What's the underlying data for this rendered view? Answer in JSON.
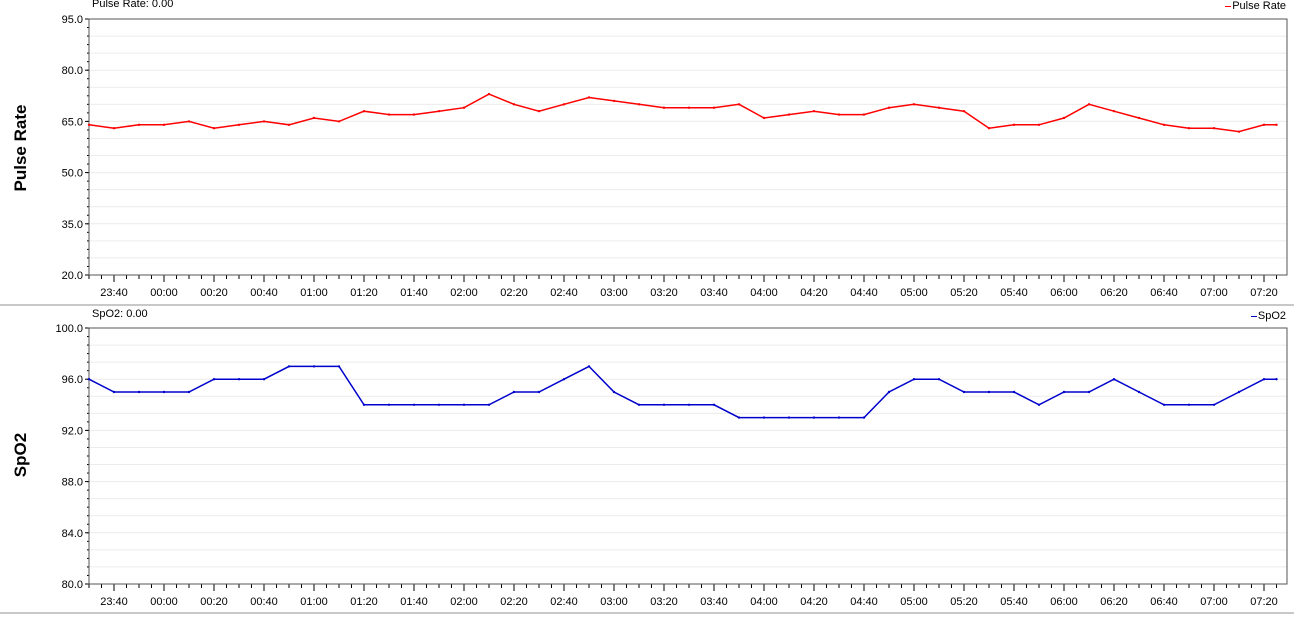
{
  "chart_data": [
    {
      "type": "line",
      "readout": "Pulse Rate: 0.00",
      "ylabel": "Pulse Rate",
      "legend": "Pulse Rate",
      "color": "#ff0000",
      "ylim": [
        20,
        95
      ],
      "yticks": [
        "20.0",
        "35.0",
        "50.0",
        "65.0",
        "80.0",
        "95.0"
      ],
      "xticks": [
        "23:40",
        "00:00",
        "00:20",
        "00:40",
        "01:00",
        "01:20",
        "01:40",
        "02:00",
        "02:20",
        "02:40",
        "03:00",
        "03:20",
        "03:40",
        "04:00",
        "04:20",
        "04:40",
        "05:00",
        "05:20",
        "05:40",
        "06:00",
        "06:20",
        "06:40",
        "07:00",
        "07:20"
      ],
      "grid": true,
      "legend_position": "top-right",
      "series": [
        {
          "name": "Pulse Rate",
          "x": [
            "23:30",
            "23:40",
            "23:50",
            "00:00",
            "00:10",
            "00:20",
            "00:30",
            "00:40",
            "00:50",
            "01:00",
            "01:10",
            "01:20",
            "01:30",
            "01:40",
            "01:50",
            "02:00",
            "02:10",
            "02:20",
            "02:30",
            "02:40",
            "02:50",
            "03:00",
            "03:10",
            "03:20",
            "03:30",
            "03:40",
            "03:50",
            "04:00",
            "04:10",
            "04:20",
            "04:30",
            "04:40",
            "04:50",
            "05:00",
            "05:10",
            "05:20",
            "05:30",
            "05:40",
            "05:50",
            "06:00",
            "06:10",
            "06:20",
            "06:30",
            "06:40",
            "06:50",
            "07:00",
            "07:10",
            "07:20",
            "07:25"
          ],
          "values": [
            64,
            63,
            64,
            64,
            65,
            63,
            64,
            65,
            64,
            66,
            65,
            68,
            67,
            67,
            68,
            69,
            73,
            70,
            68,
            70,
            72,
            71,
            70,
            69,
            69,
            69,
            70,
            66,
            67,
            68,
            67,
            67,
            69,
            70,
            69,
            68,
            63,
            64,
            64,
            66,
            70,
            68,
            66,
            64,
            63,
            63,
            62,
            64,
            64
          ]
        }
      ]
    },
    {
      "type": "line",
      "readout": "SpO2: 0.00",
      "ylabel": "SpO2",
      "legend": "SpO2",
      "color": "#0000cc",
      "ylim": [
        80,
        100
      ],
      "yticks": [
        "80.0",
        "84.0",
        "88.0",
        "92.0",
        "96.0",
        "100.0"
      ],
      "xticks": [
        "23:40",
        "00:00",
        "00:20",
        "00:40",
        "01:00",
        "01:20",
        "01:40",
        "02:00",
        "02:20",
        "02:40",
        "03:00",
        "03:20",
        "03:40",
        "04:00",
        "04:20",
        "04:40",
        "05:00",
        "05:20",
        "05:40",
        "06:00",
        "06:20",
        "06:40",
        "07:00",
        "07:20"
      ],
      "grid": true,
      "legend_position": "top-right",
      "series": [
        {
          "name": "SpO2",
          "x": [
            "23:30",
            "23:40",
            "23:50",
            "00:00",
            "00:10",
            "00:20",
            "00:30",
            "00:40",
            "00:50",
            "01:00",
            "01:10",
            "01:20",
            "01:30",
            "01:40",
            "01:50",
            "02:00",
            "02:10",
            "02:20",
            "02:30",
            "02:40",
            "02:50",
            "03:00",
            "03:10",
            "03:20",
            "03:30",
            "03:40",
            "03:50",
            "04:00",
            "04:10",
            "04:20",
            "04:30",
            "04:40",
            "04:50",
            "05:00",
            "05:10",
            "05:20",
            "05:30",
            "05:40",
            "05:50",
            "06:00",
            "06:10",
            "06:20",
            "06:30",
            "06:40",
            "06:50",
            "07:00",
            "07:10",
            "07:20",
            "07:25"
          ],
          "values": [
            96,
            95,
            95,
            95,
            95,
            96,
            96,
            96,
            97,
            97,
            97,
            94,
            94,
            94,
            94,
            94,
            94,
            95,
            95,
            96,
            97,
            95,
            94,
            94,
            94,
            94,
            93,
            93,
            93,
            93,
            93,
            93,
            95,
            96,
            96,
            95,
            95,
            95,
            94,
            95,
            95,
            96,
            95,
            94,
            94,
            94,
            95,
            96,
            96
          ]
        }
      ]
    }
  ]
}
